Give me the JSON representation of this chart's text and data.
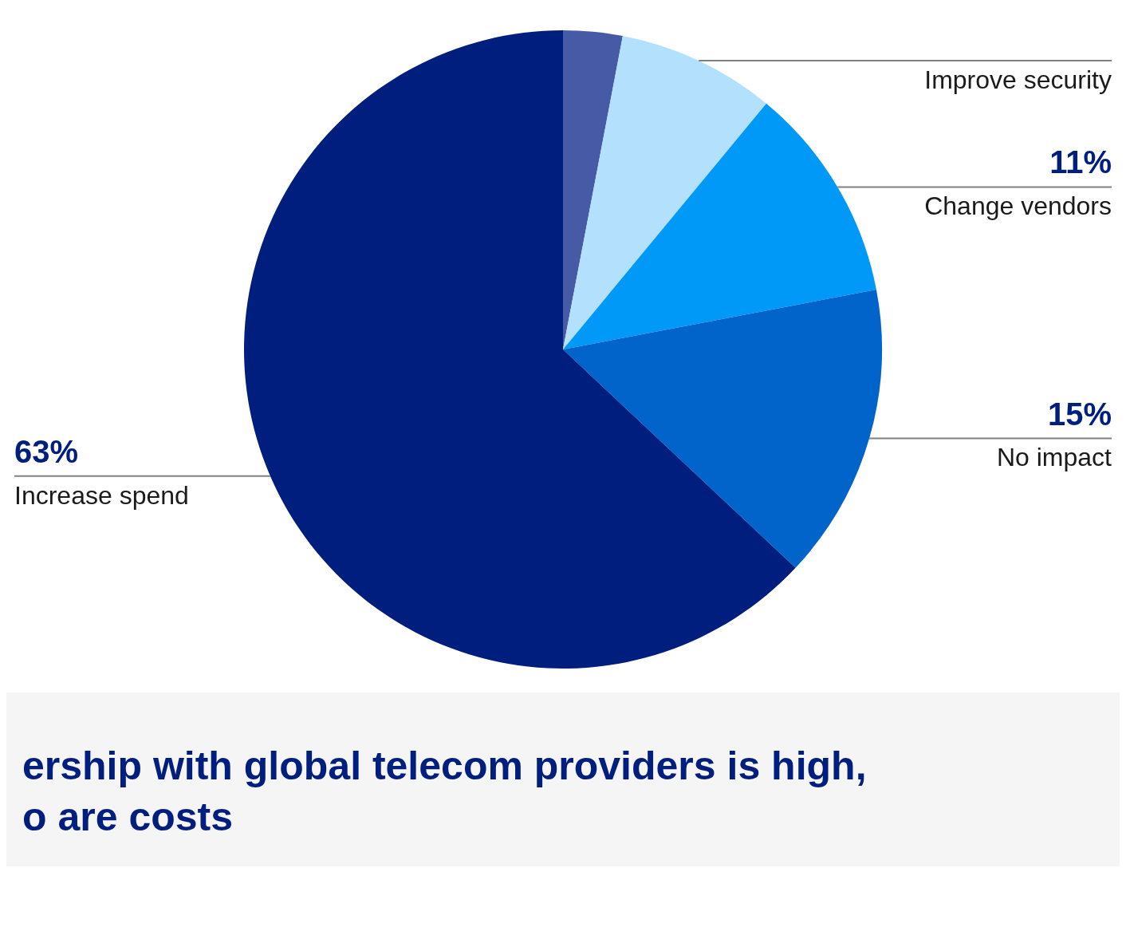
{
  "chart_data": {
    "type": "pie",
    "categories": [
      null,
      "Improve security",
      "Change vendors",
      "No impact",
      "Increase spend"
    ],
    "values": [
      3,
      8,
      11,
      15,
      63
    ],
    "value_labels": [
      null,
      null,
      "11%",
      "15%",
      "63%"
    ],
    "colors": [
      "#465aa6",
      "#b3e0fd",
      "#0099f7",
      "#0064cb",
      "#001e7e"
    ],
    "legend": false,
    "annotations": [
      "ership with global telecom providers is high,",
      "o are costs"
    ]
  }
}
